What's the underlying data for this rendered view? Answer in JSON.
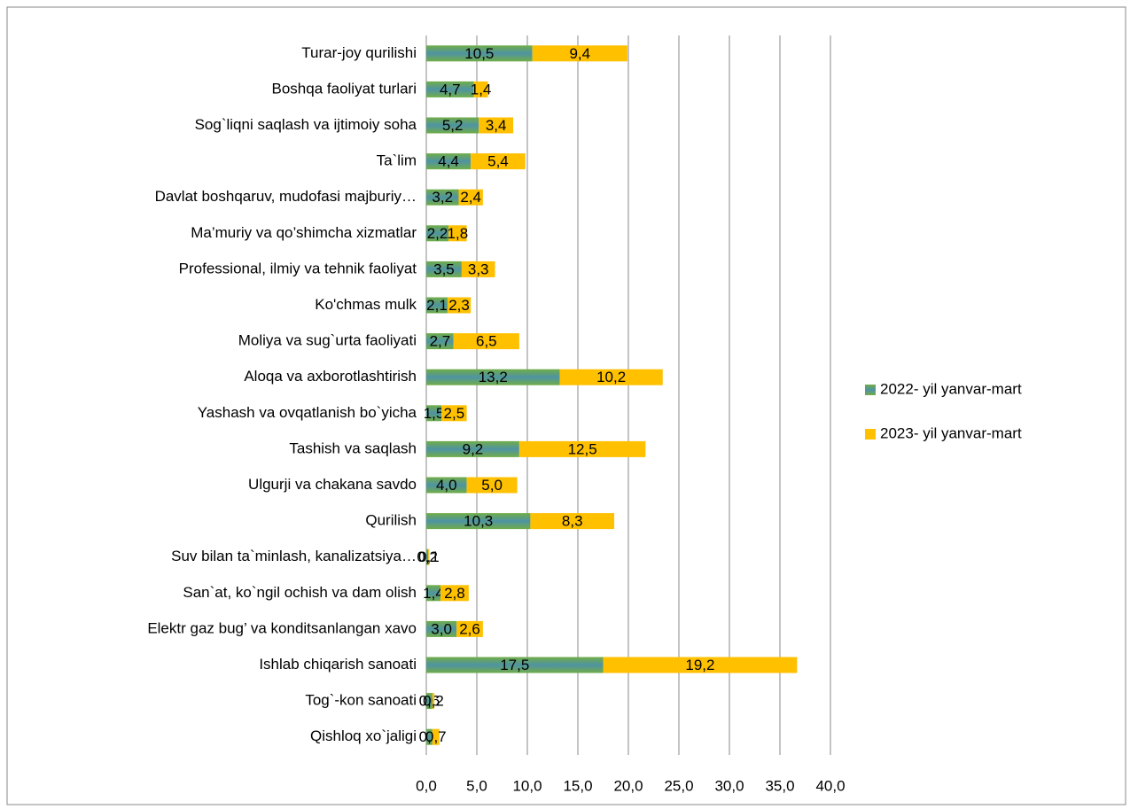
{
  "chart_data": {
    "type": "stacked-bar-horizontal",
    "categories": [
      "Turar-joy qurilishi",
      "Boshqa faoliyat turlari",
      "Sog`liqni saqlash va ijtimoiy soha",
      "Ta`lim",
      "Davlat boshqaruv, mudofasi majburiy…",
      "Ma’muriy va qo’shimcha xizmatlar",
      "Professional, ilmiy va tehnik faoliyat",
      "Ko'chmas mulk",
      "Moliya va sug`urta faoliyati",
      "Aloqa va axborotlashtirish",
      "Yashash va ovqatlanish bo`yicha",
      "Tashish va saqlash",
      "Ulgurji va chakana savdo",
      "Qurilish",
      "Suv bilan ta`minlash, kanalizatsiya…",
      "San`at, ko`ngil ochish va dam olish",
      "Elektr gaz bug’ va konditsanlangan xavo",
      "Ishlab chiqarish sanoati",
      "Tog`-kon sanoati",
      "Qishloq xo`jaligi"
    ],
    "series": [
      {
        "name": "2022- yil yanvar-mart",
        "color": "#70ad47",
        "values": [
          10.5,
          4.7,
          5.2,
          4.4,
          3.2,
          2.2,
          3.5,
          2.1,
          2.7,
          13.2,
          1.5,
          9.2,
          4.0,
          10.3,
          0.2,
          1.4,
          3.0,
          17.5,
          0.6,
          0.6
        ],
        "value_labels": [
          "10,5",
          "4,7",
          "5,2",
          "4,4",
          "3,2",
          "2,2",
          "3,5",
          "2,1",
          "2,7",
          "13,2",
          "1,5",
          "9,2",
          "4,0",
          "10,3",
          "0,2",
          "1,4",
          "3,0",
          "17,5",
          "0,6",
          "0,6"
        ]
      },
      {
        "name": "2023- yil yanvar-mart",
        "color": "#ffc000",
        "values": [
          9.4,
          1.4,
          3.4,
          5.4,
          2.4,
          1.8,
          3.3,
          2.3,
          6.5,
          10.2,
          2.5,
          12.5,
          5.0,
          8.3,
          0.1,
          2.8,
          2.6,
          19.2,
          0.2,
          0.7
        ],
        "value_labels": [
          "9,4",
          "1,4",
          "3,4",
          "5,4",
          "2,4",
          "1,8",
          "3,3",
          "2,3",
          "6,5",
          "10,2",
          "2,5",
          "12,5",
          "5,0",
          "8,3",
          "0,1",
          "2,8",
          "2,6",
          "19,2",
          "0,2",
          "0,7"
        ]
      }
    ],
    "xlim": [
      0,
      40
    ],
    "xticks": [
      {
        "value": 0,
        "label": "0,0"
      },
      {
        "value": 5,
        "label": "5,0"
      },
      {
        "value": 10,
        "label": "10,0"
      },
      {
        "value": 15,
        "label": "15,0"
      },
      {
        "value": 20,
        "label": "20,0"
      },
      {
        "value": 25,
        "label": "25,0"
      },
      {
        "value": 30,
        "label": "30,0"
      },
      {
        "value": 35,
        "label": "35,0"
      },
      {
        "value": 40,
        "label": "40,0"
      }
    ],
    "grid": true,
    "legend": "right"
  }
}
